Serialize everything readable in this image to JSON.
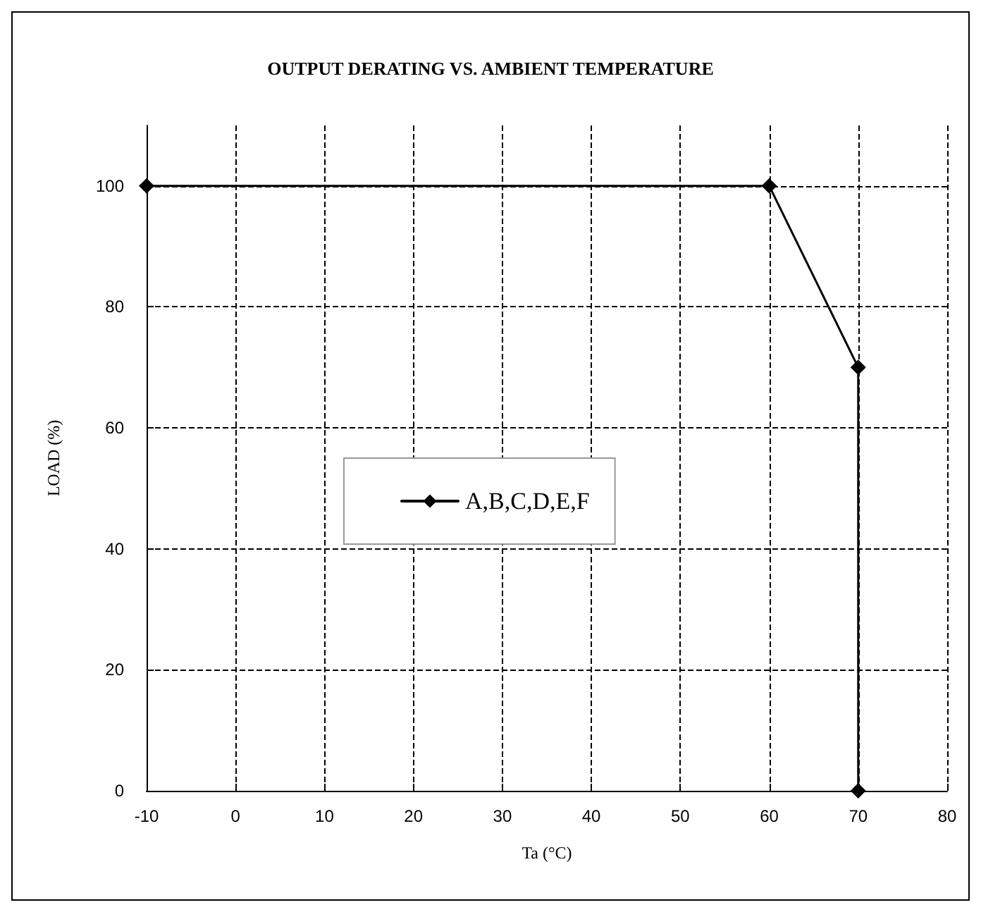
{
  "chart_data": {
    "type": "line",
    "title": "OUTPUT DERATING VS. AMBIENT TEMPERATURE",
    "xlabel": "Ta (°C)",
    "ylabel": "LOAD (%)",
    "x": [
      -10,
      60,
      70,
      70
    ],
    "series": [
      {
        "name": "A,B,C,D,E,F",
        "color": "#000000",
        "values": [
          100,
          100,
          70,
          0
        ]
      }
    ],
    "xlim": [
      -10,
      80
    ],
    "xticks": [
      -10,
      0,
      10,
      20,
      30,
      40,
      50,
      60,
      70,
      80
    ],
    "ylim": [
      0,
      110
    ],
    "yticks": [
      0,
      20,
      40,
      60,
      80,
      100
    ],
    "grid": true,
    "legend": "left",
    "marker": "diamond",
    "line_style": "solid"
  }
}
